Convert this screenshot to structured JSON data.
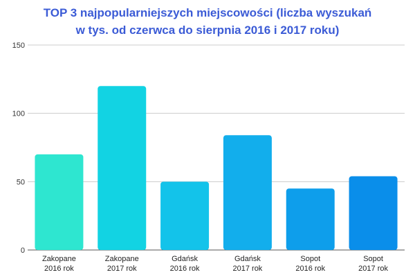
{
  "chart_data": {
    "type": "bar",
    "title_lines": [
      "TOP 3 najpopularniejszych miejscowości (liczba wyszukań",
      "w tys. od czerwca do sierpnia 2016 i 2017 roku)"
    ],
    "categories": [
      [
        "Zakopane",
        "2016 rok"
      ],
      [
        "Zakopane",
        "2017 rok"
      ],
      [
        "Gdańsk",
        "2016 rok"
      ],
      [
        "Gdańsk",
        "2017 rok"
      ],
      [
        "Sopot",
        "2016 rok"
      ],
      [
        "Sopot",
        "2017 rok"
      ]
    ],
    "values": [
      70,
      120,
      50,
      84,
      45,
      54
    ],
    "colors": [
      "#2ee6d0",
      "#12d3e3",
      "#13c3ea",
      "#12aeec",
      "#0e9eeb",
      "#0a8eea"
    ],
    "yticks": [
      0,
      50,
      100,
      150
    ],
    "ylim": [
      0,
      150
    ],
    "xlabel": "",
    "ylabel": "",
    "grid": true,
    "legend": "none"
  }
}
